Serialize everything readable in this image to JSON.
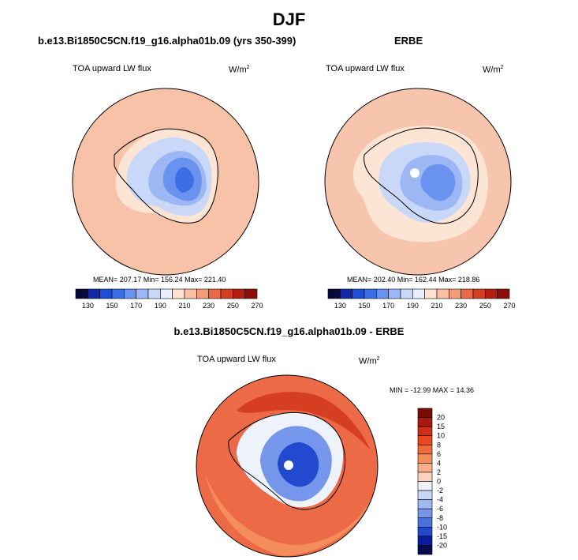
{
  "title": "DJF",
  "panels": [
    {
      "id": "model",
      "title": "b.e13.Bi1850C5CN.f19_g16.alpha01b.09 (yrs 350-399)",
      "left_label": "TOA upward LW flux",
      "units": "W/m",
      "units_sup": "2",
      "stats": "MEAN= 207.17  Min= 156.24  Max= 221.40",
      "mean": 207.17,
      "min": 156.24,
      "max": 221.4
    },
    {
      "id": "obs",
      "title": "ERBE",
      "left_label": "TOA upward LW flux",
      "units": "W/m",
      "units_sup": "2",
      "stats": "MEAN= 202.40  Min= 162.44  Max= 218.86",
      "mean": 202.4,
      "min": 162.44,
      "max": 218.86
    }
  ],
  "colorbar_h": {
    "labels": [
      "130",
      "150",
      "170",
      "190",
      "210",
      "230",
      "250",
      "270"
    ],
    "colors": [
      "#08083a",
      "#102aa6",
      "#1f4fd8",
      "#3c6ee6",
      "#6a93ef",
      "#9cb7f4",
      "#c9d8f8",
      "#eaf0fb",
      "#fde2d2",
      "#f8c1a3",
      "#f29b76",
      "#e96a45",
      "#d63e22",
      "#b51f12",
      "#8c0e08"
    ]
  },
  "diff": {
    "title": "b.e13.Bi1850C5CN.f19_g16.alpha01b.09 - ERBE",
    "left_label": "TOA upward LW flux",
    "units": "W/m",
    "units_sup": "2",
    "minmax": "MIN = -12.99 MAX =  14.36",
    "min": -12.99,
    "max": 14.36,
    "colorbar_labels": [
      "20",
      "15",
      "10",
      "8",
      "6",
      "4",
      "2",
      "0",
      "-2",
      "-4",
      "-6",
      "-8",
      "-10",
      "-15",
      "-20"
    ],
    "colorbar_colors": [
      "#7a0c06",
      "#a81a0d",
      "#cf2f16",
      "#e8471f",
      "#f0693a",
      "#f48d5c",
      "#f8b08a",
      "#fbd3bd",
      "#eef2fb",
      "#c8d7f7",
      "#9fb8f1",
      "#7596ea",
      "#4c72e0",
      "#2349cf",
      "#0a1c9c",
      "#070a52"
    ]
  }
}
